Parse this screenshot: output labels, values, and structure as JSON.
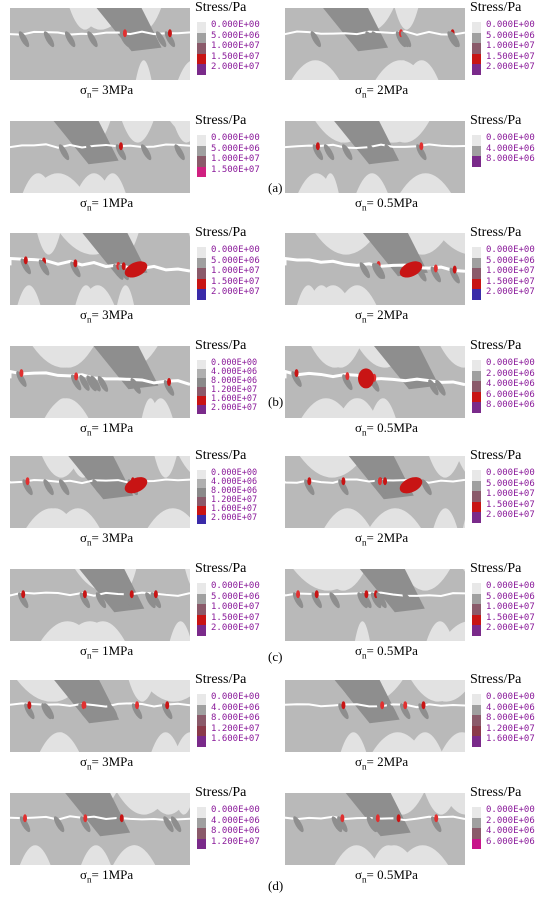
{
  "colors": {
    "bg_light": "#e2e2e2",
    "bg_mid": "#b9b9b9",
    "bg_dark": "#8e8e8e",
    "crack": "#ffffff",
    "high": "#c81414",
    "higher": "#e03030",
    "max": "#3a2aa8",
    "label_text": "#8a1a9a"
  },
  "legend_title": "Stress/Pa",
  "groups": [
    {
      "label": "(a)",
      "panels": [
        {
          "caption_value": "3MPa",
          "levels": [
            "0.000E+00",
            "5.000E+06",
            "1.000E+07",
            "1.500E+07",
            "2.000E+07"
          ],
          "swatches": [
            "#e8e8e8",
            "#a0a0a0",
            "#8a5a6a",
            "#c81414",
            "#7a2a8a"
          ]
        },
        {
          "caption_value": "2MPa",
          "levels": [
            "0.000E+00",
            "5.000E+06",
            "1.000E+07",
            "1.500E+07",
            "2.000E+07"
          ],
          "swatches": [
            "#e8e8e8",
            "#a0a0a0",
            "#8a5a6a",
            "#c81414",
            "#7a2a8a"
          ]
        },
        {
          "caption_value": "1MPa",
          "levels": [
            "0.000E+00",
            "5.000E+06",
            "1.000E+07",
            "1.500E+07"
          ],
          "swatches": [
            "#e8e8e8",
            "#a0a0a0",
            "#8a5a6a",
            "#d02080"
          ]
        },
        {
          "caption_value": "0.5MPa",
          "levels": [
            "0.000E+00",
            "4.000E+06",
            "8.000E+06"
          ],
          "swatches": [
            "#e8e8e8",
            "#a0a0a0",
            "#7a2a8a"
          ]
        }
      ]
    },
    {
      "label": "(b)",
      "panels": [
        {
          "caption_value": "3MPa",
          "levels": [
            "0.000E+00",
            "5.000E+06",
            "1.000E+07",
            "1.500E+07",
            "2.000E+07"
          ],
          "swatches": [
            "#e8e8e8",
            "#a0a0a0",
            "#8a5a6a",
            "#c81414",
            "#3a2aa8"
          ]
        },
        {
          "caption_value": "2MPa",
          "levels": [
            "0.000E+00",
            "5.000E+06",
            "1.000E+07",
            "1.500E+07",
            "2.000E+07"
          ],
          "swatches": [
            "#e8e8e8",
            "#a0a0a0",
            "#8a5a6a",
            "#c81414",
            "#3a2aa8"
          ]
        },
        {
          "caption_value": "1MPa",
          "levels": [
            "0.000E+00",
            "4.000E+06",
            "8.000E+06",
            "1.200E+07",
            "1.600E+07",
            "2.000E+07"
          ],
          "swatches": [
            "#e8e8e8",
            "#b0b0b0",
            "#8a8a8a",
            "#8a5a6a",
            "#c81414",
            "#7a2a8a"
          ]
        },
        {
          "caption_value": "0.5MPa",
          "levels": [
            "0.000E+00",
            "2.000E+06",
            "4.000E+06",
            "6.000E+06",
            "8.000E+06"
          ],
          "swatches": [
            "#e8e8e8",
            "#a0a0a0",
            "#8a5a6a",
            "#c81414",
            "#7a2a8a"
          ]
        }
      ]
    },
    {
      "label": "(c)",
      "panels": [
        {
          "caption_value": "3MPa",
          "levels": [
            "0.000E+00",
            "4.000E+06",
            "8.000E+06",
            "1.200E+07",
            "1.600E+07",
            "2.000E+07"
          ],
          "swatches": [
            "#e8e8e8",
            "#b0b0b0",
            "#8a8a8a",
            "#8a5a6a",
            "#c81414",
            "#3a2aa8"
          ]
        },
        {
          "caption_value": "2MPa",
          "levels": [
            "0.000E+00",
            "5.000E+06",
            "1.000E+07",
            "1.500E+07",
            "2.000E+07"
          ],
          "swatches": [
            "#e8e8e8",
            "#a0a0a0",
            "#8a5a6a",
            "#c81414",
            "#7a2a8a"
          ]
        },
        {
          "caption_value": "1MPa",
          "levels": [
            "0.000E+00",
            "5.000E+06",
            "1.000E+07",
            "1.500E+07",
            "2.000E+07"
          ],
          "swatches": [
            "#e8e8e8",
            "#a0a0a0",
            "#8a5a6a",
            "#c81414",
            "#7a2a8a"
          ]
        },
        {
          "caption_value": "0.5MPa",
          "levels": [
            "0.000E+00",
            "5.000E+06",
            "1.000E+07",
            "1.500E+07",
            "2.000E+07"
          ],
          "swatches": [
            "#e8e8e8",
            "#a0a0a0",
            "#8a5a6a",
            "#c81414",
            "#7a2a8a"
          ]
        }
      ]
    },
    {
      "label": "(d)",
      "panels": [
        {
          "caption_value": "3MPa",
          "levels": [
            "0.000E+00",
            "4.000E+06",
            "8.000E+06",
            "1.200E+07",
            "1.600E+07"
          ],
          "swatches": [
            "#e8e8e8",
            "#a0a0a0",
            "#8a5a6a",
            "#8a3a4a",
            "#7a2a8a"
          ]
        },
        {
          "caption_value": "2MPa",
          "levels": [
            "0.000E+00",
            "4.000E+06",
            "8.000E+06",
            "1.200E+07",
            "1.600E+07"
          ],
          "swatches": [
            "#e8e8e8",
            "#a0a0a0",
            "#8a5a6a",
            "#8a3a4a",
            "#7a2a8a"
          ]
        },
        {
          "caption_value": "1MPa",
          "levels": [
            "0.000E+00",
            "4.000E+06",
            "8.000E+06",
            "1.200E+07"
          ],
          "swatches": [
            "#e8e8e8",
            "#a0a0a0",
            "#8a5a6a",
            "#7a2a8a"
          ]
        },
        {
          "caption_value": "0.5MPa",
          "levels": [
            "0.000E+00",
            "2.000E+06",
            "4.000E+06",
            "6.000E+06"
          ],
          "swatches": [
            "#e8e8e8",
            "#a0a0a0",
            "#8a5a6a",
            "#c8148a"
          ]
        }
      ]
    }
  ]
}
